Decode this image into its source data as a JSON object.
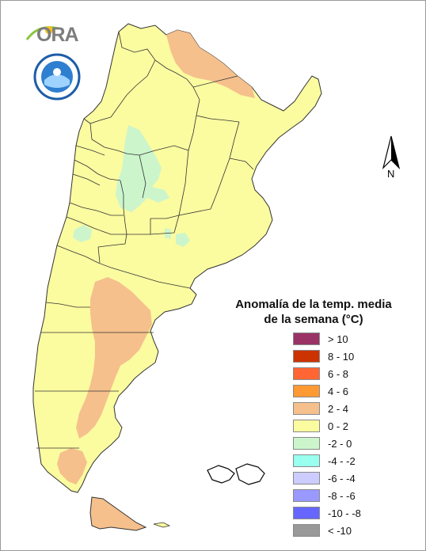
{
  "legend": {
    "title_line1": "Anomalía de la temp. media",
    "title_line2": "de la semana (°C)",
    "classes": [
      {
        "label": "> 10",
        "color": "#993366"
      },
      {
        "label": "8 - 10",
        "color": "#cc3300"
      },
      {
        "label": "6 - 8",
        "color": "#ff6633"
      },
      {
        "label": "4 - 6",
        "color": "#ff9933"
      },
      {
        "label": "2 - 4",
        "color": "#f5c08c"
      },
      {
        "label": "0 - 2",
        "color": "#fbfba0"
      },
      {
        "label": "-2 - 0",
        "color": "#ccf5cc"
      },
      {
        "label": "-4 - -2",
        "color": "#99ffee"
      },
      {
        "label": "-6 - -4",
        "color": "#ccccff"
      },
      {
        "label": "-8 - -6",
        "color": "#9999ff"
      },
      {
        "label": "-10 - -8",
        "color": "#6666ff"
      },
      {
        "label": "< -10",
        "color": "#999999"
      }
    ]
  },
  "north_arrow": {
    "label": "N"
  },
  "logos": {
    "ora": "ORA",
    "smn": "smn-seal-icon"
  },
  "colors": {
    "base_fill": "#fbfba0",
    "warm_fill": "#f5c08c",
    "cool_fill": "#ccf5cc",
    "cyan_fill": "#b8f0e0",
    "border": "#333333"
  }
}
